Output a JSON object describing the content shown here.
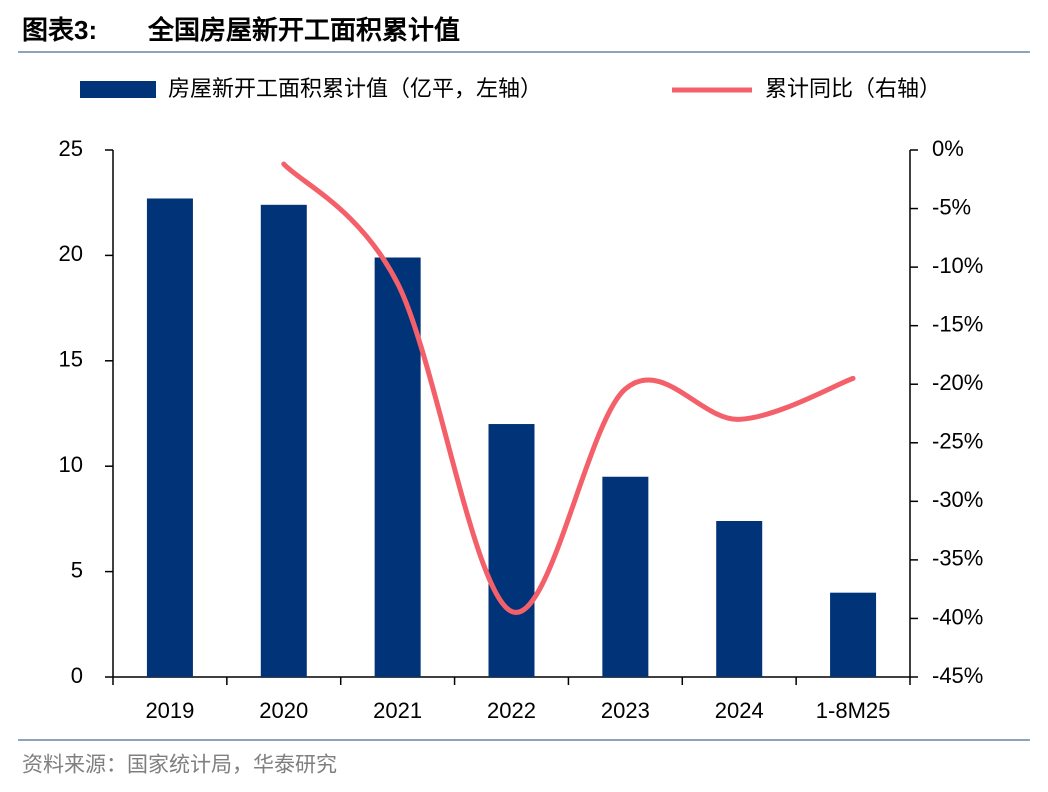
{
  "chart_data": {
    "type": "bar_line",
    "figure_label": "图表3:",
    "title": "全国房屋新开工面积累计值",
    "source": "资料来源：国家统计局，华泰研究",
    "categories": [
      "2019",
      "2020",
      "2021",
      "2022",
      "2023",
      "2024",
      "1-8M25"
    ],
    "series": [
      {
        "name": "房屋新开工面积累计值（亿平，左轴）",
        "type": "bar",
        "color": "#003378",
        "axis": "y",
        "values": [
          22.7,
          22.4,
          19.9,
          12.0,
          9.5,
          7.4,
          4.0
        ]
      },
      {
        "name": "累计同比（右轴）",
        "type": "line",
        "color": "#f4606a",
        "axis": "y2",
        "values": [
          null,
          -1.2,
          -11.4,
          -39.4,
          -20.4,
          -23.0,
          -19.5
        ]
      }
    ],
    "ylim": [
      0,
      25
    ],
    "yticks": [
      0,
      5,
      10,
      15,
      20,
      25
    ],
    "y2lim": [
      -45,
      0
    ],
    "y2ticks": [
      {
        "value": 0,
        "label": "0%"
      },
      {
        "value": -5,
        "label": "-5%"
      },
      {
        "value": -10,
        "label": "-10%"
      },
      {
        "value": -15,
        "label": "-15%"
      },
      {
        "value": -20,
        "label": "-20%"
      },
      {
        "value": -25,
        "label": "-25%"
      },
      {
        "value": -30,
        "label": "-30%"
      },
      {
        "value": -35,
        "label": "-35%"
      },
      {
        "value": -40,
        "label": "-40%"
      },
      {
        "value": -45,
        "label": "-45%"
      }
    ],
    "grid": false,
    "legend": "top"
  }
}
